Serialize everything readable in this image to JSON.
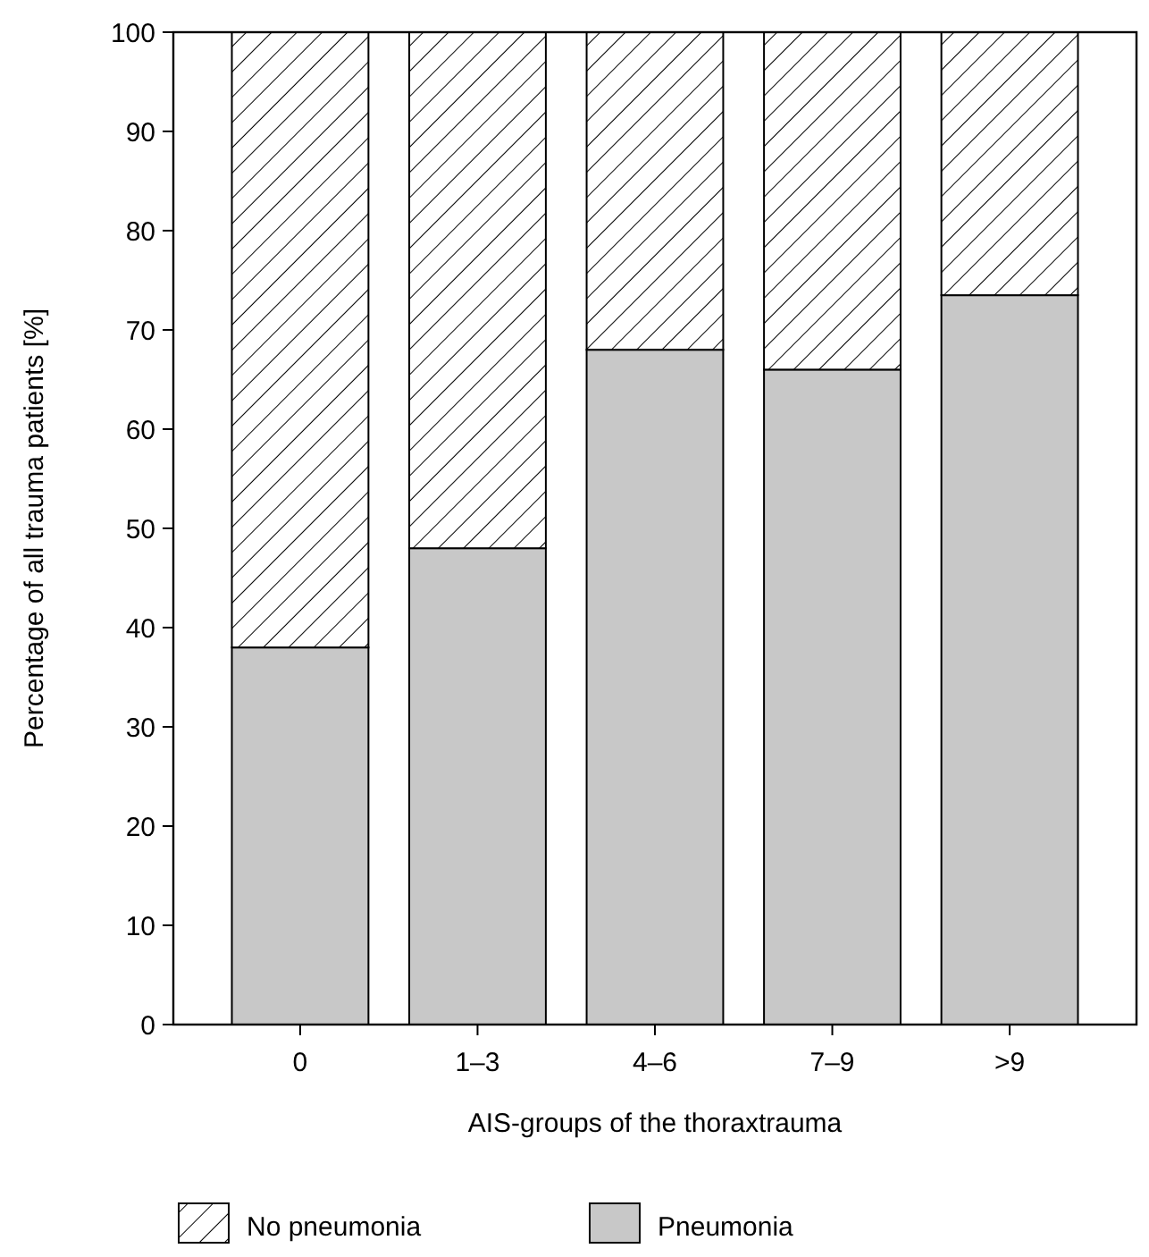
{
  "chart_data": {
    "type": "bar",
    "stacked": true,
    "xlabel": "AIS-groups of the thoraxtrauma",
    "ylabel": "Percentage of all trauma patients [%]",
    "categories": [
      "0",
      "1–3",
      "4–6",
      "7–9",
      ">9"
    ],
    "series": [
      {
        "name": "Pneumonia",
        "color": "#c8c8c8",
        "values": [
          38,
          48,
          68,
          66,
          73.5
        ]
      },
      {
        "name": "No pneumonia",
        "color": "#000000",
        "values": [
          62,
          52,
          32,
          34,
          26.5
        ]
      }
    ],
    "ylim": [
      0,
      100
    ],
    "yticks": [
      0,
      10,
      20,
      30,
      40,
      50,
      60,
      70,
      80,
      90,
      100
    ],
    "grid": false,
    "legend": "bottom"
  }
}
